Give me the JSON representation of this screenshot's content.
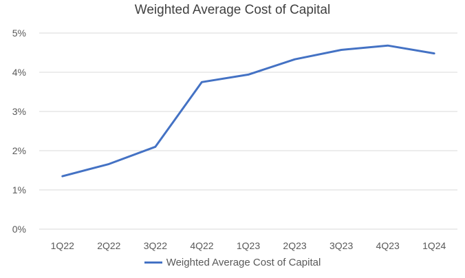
{
  "chart_data": {
    "type": "line",
    "title": "Weighted Average Cost of Capital",
    "xlabel": "",
    "ylabel": "",
    "categories": [
      "1Q22",
      "2Q22",
      "3Q22",
      "4Q22",
      "1Q23",
      "2Q23",
      "3Q23",
      "4Q23",
      "1Q24"
    ],
    "series": [
      {
        "name": "Weighted Average Cost of Capital",
        "color": "#4472c4",
        "values": [
          1.35,
          1.66,
          2.1,
          3.75,
          3.94,
          4.33,
          4.57,
          4.68,
          4.48
        ]
      }
    ],
    "ylim": [
      0,
      5
    ],
    "yticks": [
      0,
      1,
      2,
      3,
      4,
      5
    ],
    "ytick_labels": [
      "0%",
      "1%",
      "2%",
      "3%",
      "4%",
      "5%"
    ],
    "grid": true,
    "legend_position": "bottom"
  }
}
